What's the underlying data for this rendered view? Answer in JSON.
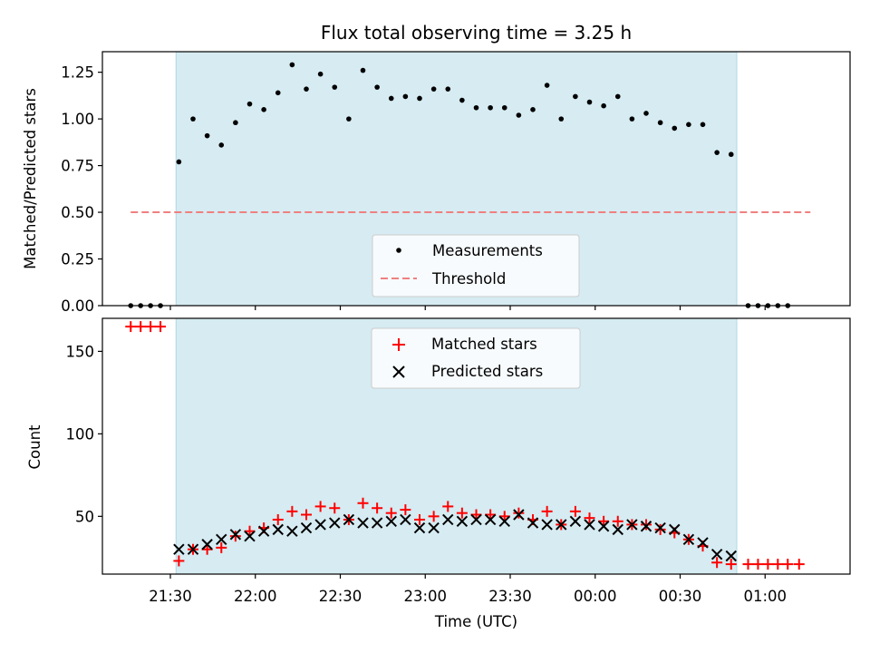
{
  "chart_data": [
    {
      "type": "scatter",
      "title": "Flux total observing time = 3.25 h",
      "xlabel": "",
      "ylabel": "Matched/Predicted stars",
      "x_type": "time",
      "xlim": [
        "21:06",
        "01:30"
      ],
      "ylim": [
        0,
        1.36
      ],
      "yticks": [
        "0.00",
        "0.25",
        "0.50",
        "0.75",
        "1.00",
        "1.25"
      ],
      "ytick_values": [
        0,
        0.25,
        0.5,
        0.75,
        1.0,
        1.25
      ],
      "shaded_interval": [
        "21:32",
        "00:50"
      ],
      "shade_color": "#add8e6",
      "legend": {
        "placement": "lower-center",
        "entries": [
          {
            "label": "Measurements",
            "marker": "dot",
            "color": "#000000"
          },
          {
            "label": "Threshold",
            "marker": "dashed-line",
            "color": "#f08080"
          }
        ]
      },
      "threshold": {
        "name": "Threshold",
        "value": 0.5,
        "x_start": "21:16",
        "x_end": "01:16",
        "color": "#f08080"
      },
      "series": [
        {
          "name": "Measurements",
          "color": "#000000",
          "points": [
            [
              "21:16",
              0
            ],
            [
              "21:19.5",
              0
            ],
            [
              "21:23",
              0
            ],
            [
              "21:26.5",
              0
            ],
            [
              "21:33",
              0.77
            ],
            [
              "21:38",
              1.0
            ],
            [
              "21:43",
              0.91
            ],
            [
              "21:48",
              0.86
            ],
            [
              "21:53",
              0.98
            ],
            [
              "21:58",
              1.08
            ],
            [
              "22:03",
              1.05
            ],
            [
              "22:08",
              1.14
            ],
            [
              "22:13",
              1.29
            ],
            [
              "22:18",
              1.16
            ],
            [
              "22:23",
              1.24
            ],
            [
              "22:28",
              1.17
            ],
            [
              "22:33",
              1.0
            ],
            [
              "22:38",
              1.26
            ],
            [
              "22:43",
              1.17
            ],
            [
              "22:48",
              1.11
            ],
            [
              "22:53",
              1.12
            ],
            [
              "22:58",
              1.11
            ],
            [
              "23:03",
              1.16
            ],
            [
              "23:08",
              1.16
            ],
            [
              "23:13",
              1.1
            ],
            [
              "23:18",
              1.06
            ],
            [
              "23:23",
              1.06
            ],
            [
              "23:28",
              1.06
            ],
            [
              "23:33",
              1.02
            ],
            [
              "23:38",
              1.05
            ],
            [
              "23:43",
              1.18
            ],
            [
              "23:48",
              1.0
            ],
            [
              "23:53",
              1.12
            ],
            [
              "23:58",
              1.09
            ],
            [
              "00:03",
              1.07
            ],
            [
              "00:08",
              1.12
            ],
            [
              "00:13",
              1.0
            ],
            [
              "00:18",
              1.03
            ],
            [
              "00:23",
              0.98
            ],
            [
              "00:28",
              0.95
            ],
            [
              "00:33",
              0.97
            ],
            [
              "00:38",
              0.97
            ],
            [
              "00:43",
              0.82
            ],
            [
              "00:48",
              0.81
            ],
            [
              "00:54",
              0
            ],
            [
              "00:57.5",
              0
            ],
            [
              "01:01",
              0
            ],
            [
              "01:04.5",
              0
            ],
            [
              "01:08",
              0
            ]
          ]
        }
      ]
    },
    {
      "type": "scatter",
      "title": "",
      "xlabel": "Time (UTC)",
      "ylabel": "Count",
      "x_type": "time",
      "xlim": [
        "21:06",
        "01:30"
      ],
      "ylim": [
        15,
        170
      ],
      "yticks": [
        "50",
        "100",
        "150"
      ],
      "ytick_values": [
        50,
        100,
        150
      ],
      "xticks": [
        "21:30",
        "22:00",
        "22:30",
        "23:00",
        "23:30",
        "00:00",
        "00:30",
        "01:00"
      ],
      "shaded_interval": [
        "21:32",
        "00:50"
      ],
      "shade_color": "#add8e6",
      "legend": {
        "placement": "upper-center",
        "entries": [
          {
            "label": "Matched stars",
            "marker": "plus",
            "color": "#ff0000"
          },
          {
            "label": "Predicted stars",
            "marker": "x",
            "color": "#000000"
          }
        ]
      },
      "series": [
        {
          "name": "Matched stars",
          "color": "#ff0000",
          "marker": "plus",
          "points": [
            [
              "21:16",
              165
            ],
            [
              "21:19.5",
              165
            ],
            [
              "21:23",
              165
            ],
            [
              "21:26.5",
              165
            ],
            [
              "21:33",
              23
            ],
            [
              "21:38",
              30
            ],
            [
              "21:43",
              30
            ],
            [
              "21:48",
              31
            ],
            [
              "21:53",
              38
            ],
            [
              "21:58",
              41
            ],
            [
              "22:03",
              43
            ],
            [
              "22:08",
              48
            ],
            [
              "22:13",
              53
            ],
            [
              "22:18",
              51
            ],
            [
              "22:23",
              56
            ],
            [
              "22:28",
              55
            ],
            [
              "22:33",
              48
            ],
            [
              "22:38",
              58
            ],
            [
              "22:43",
              55
            ],
            [
              "22:48",
              52
            ],
            [
              "22:53",
              54
            ],
            [
              "22:58",
              48
            ],
            [
              "23:03",
              50
            ],
            [
              "23:08",
              56
            ],
            [
              "23:13",
              52
            ],
            [
              "23:18",
              51
            ],
            [
              "23:23",
              51
            ],
            [
              "23:28",
              50
            ],
            [
              "23:33",
              52
            ],
            [
              "23:38",
              48
            ],
            [
              "23:43",
              53
            ],
            [
              "23:48",
              45
            ],
            [
              "23:53",
              53
            ],
            [
              "23:58",
              49
            ],
            [
              "00:03",
              47
            ],
            [
              "00:08",
              47
            ],
            [
              "00:13",
              45
            ],
            [
              "00:18",
              45
            ],
            [
              "00:23",
              42
            ],
            [
              "00:28",
              40
            ],
            [
              "00:33",
              36
            ],
            [
              "00:38",
              32
            ],
            [
              "00:43",
              22
            ],
            [
              "00:48",
              21
            ],
            [
              "00:54",
              21
            ],
            [
              "00:57.5",
              21
            ],
            [
              "01:01",
              21
            ],
            [
              "01:04.5",
              21
            ],
            [
              "01:08",
              21
            ],
            [
              "01:12",
              21
            ]
          ]
        },
        {
          "name": "Predicted stars",
          "color": "#000000",
          "marker": "x",
          "points": [
            [
              "21:33",
              30
            ],
            [
              "21:38",
              30
            ],
            [
              "21:43",
              33
            ],
            [
              "21:48",
              36
            ],
            [
              "21:53",
              39
            ],
            [
              "21:58",
              38
            ],
            [
              "22:03",
              41
            ],
            [
              "22:08",
              42
            ],
            [
              "22:13",
              41
            ],
            [
              "22:18",
              43
            ],
            [
              "22:23",
              45
            ],
            [
              "22:28",
              46
            ],
            [
              "22:33",
              48
            ],
            [
              "22:38",
              46
            ],
            [
              "22:43",
              46
            ],
            [
              "22:48",
              47
            ],
            [
              "22:53",
              48
            ],
            [
              "22:58",
              43
            ],
            [
              "23:03",
              43
            ],
            [
              "23:08",
              48
            ],
            [
              "23:13",
              47
            ],
            [
              "23:18",
              48
            ],
            [
              "23:23",
              48
            ],
            [
              "23:28",
              47
            ],
            [
              "23:33",
              51
            ],
            [
              "23:38",
              46
            ],
            [
              "23:43",
              45
            ],
            [
              "23:48",
              45
            ],
            [
              "23:53",
              47
            ],
            [
              "23:58",
              45
            ],
            [
              "00:03",
              44
            ],
            [
              "00:08",
              42
            ],
            [
              "00:13",
              45
            ],
            [
              "00:18",
              44
            ],
            [
              "00:23",
              43
            ],
            [
              "00:28",
              42
            ],
            [
              "00:33",
              36
            ],
            [
              "00:38",
              34
            ],
            [
              "00:43",
              27
            ],
            [
              "00:48",
              26
            ]
          ]
        }
      ]
    }
  ]
}
